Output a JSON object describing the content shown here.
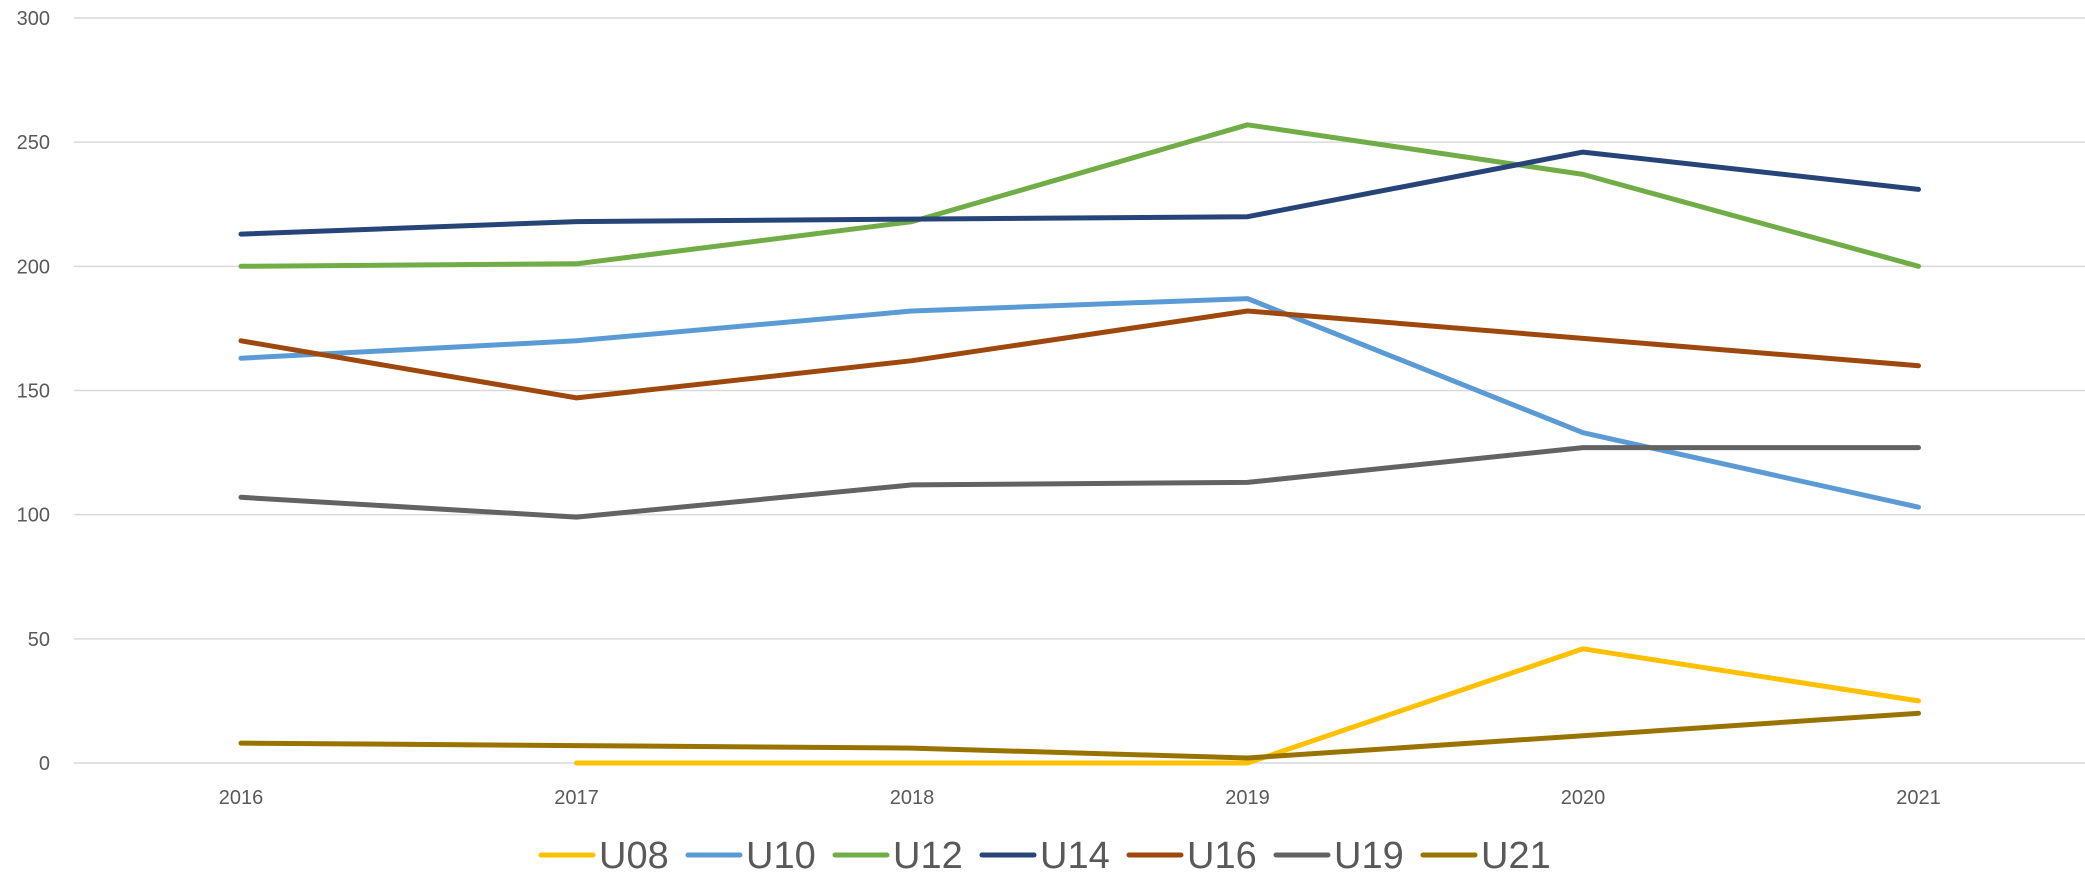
{
  "chart_data": {
    "type": "line",
    "title": "",
    "xlabel": "",
    "ylabel": "",
    "categories": [
      "2016",
      "2017",
      "2018",
      "2019",
      "2020",
      "2021"
    ],
    "ylim": [
      0,
      300
    ],
    "y_ticks": [
      "0",
      "50",
      "100",
      "150",
      "200",
      "250",
      "300"
    ],
    "grid": true,
    "legend_position": "bottom",
    "series": [
      {
        "name": "U08",
        "color": "#FFC000",
        "values": [
          null,
          0,
          0,
          0,
          46,
          25
        ]
      },
      {
        "name": "U10",
        "color": "#5B9BD5",
        "values": [
          163,
          170,
          182,
          187,
          133,
          103
        ]
      },
      {
        "name": "U12",
        "color": "#70AD47",
        "values": [
          200,
          201,
          218,
          257,
          237,
          200
        ]
      },
      {
        "name": "U14",
        "color": "#264478",
        "values": [
          213,
          218,
          219,
          220,
          246,
          231
        ]
      },
      {
        "name": "U16",
        "color": "#9E480E",
        "values": [
          170,
          147,
          162,
          182,
          171,
          160
        ]
      },
      {
        "name": "U19",
        "color": "#636363",
        "values": [
          107,
          99,
          112,
          113,
          127,
          127
        ]
      },
      {
        "name": "U21",
        "color": "#997300",
        "values": [
          8,
          7,
          6,
          2,
          11,
          20
        ]
      }
    ]
  }
}
